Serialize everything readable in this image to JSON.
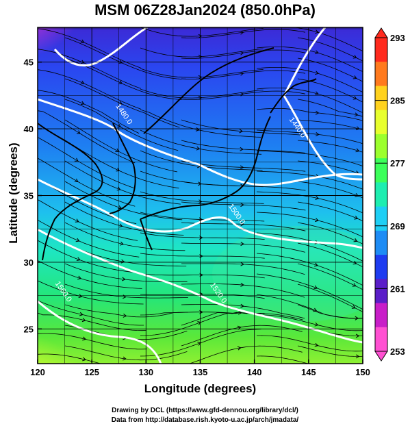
{
  "title": "MSM 06Z28Jan2024 (850.0hPa)",
  "xlabel": "Longitude (degrees)",
  "ylabel": "Latitude  (degrees)",
  "credits": {
    "line1": "Drawing by DCL (https://www.gfd-dennou.org/library/dcl/)",
    "line2": "Data from http://database.rish.kyoto-u.ac.jp/arch/jmadata/"
  },
  "map": {
    "lon_range": [
      120,
      150
    ],
    "lat_range": [
      22.4,
      47.6
    ],
    "lon_ticks": [
      120,
      125,
      130,
      135,
      140,
      145,
      150
    ],
    "lat_ticks": [
      25,
      30,
      35,
      40,
      45
    ],
    "grid": true,
    "contours": [
      {
        "label": "1480.0",
        "lon": 127.8,
        "lat": 41.0
      },
      {
        "label": "1440.0",
        "lon": 143.8,
        "lat": 40.0
      },
      {
        "label": "1500.0",
        "lon": 138.2,
        "lat": 33.5
      },
      {
        "label": "1520.0",
        "lon": 136.5,
        "lat": 27.6
      },
      {
        "label": "1560.0",
        "lon": 122.2,
        "lat": 27.7
      }
    ]
  },
  "colorbar": {
    "min": 253,
    "max": 293,
    "tick_labels": [
      "293",
      "285",
      "277",
      "269",
      "261",
      "253"
    ],
    "tick_values": [
      293,
      285,
      277,
      269,
      261,
      253
    ],
    "colors": [
      "#ff2a1e",
      "#ff7a1e",
      "#ffd21e",
      "#e8ff2e",
      "#9cff2e",
      "#3cff5a",
      "#1eeeb0",
      "#1ecff5",
      "#1e8cf5",
      "#1e3cf0",
      "#5a1ec8",
      "#c81ec8",
      "#ff50d2"
    ]
  }
}
